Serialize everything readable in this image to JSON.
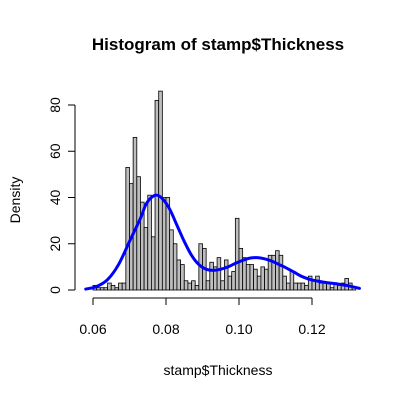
{
  "chart_data": {
    "type": "bar",
    "title": "Histogram of stamp$Thickness",
    "xlabel": "stamp$Thickness",
    "ylabel": "Density",
    "xlim": [
      0.06,
      0.13
    ],
    "ylim": [
      0,
      87
    ],
    "x_ticks": [
      "0.06",
      "0.08",
      "0.10",
      "0.12"
    ],
    "y_ticks": [
      "0",
      "20",
      "40",
      "60",
      "80"
    ],
    "bin_width": 0.001,
    "bins_start": [
      0.06,
      0.061,
      0.062,
      0.063,
      0.064,
      0.065,
      0.066,
      0.067,
      0.068,
      0.069,
      0.07,
      0.071,
      0.072,
      0.073,
      0.074,
      0.075,
      0.076,
      0.077,
      0.078,
      0.079,
      0.08,
      0.081,
      0.082,
      0.083,
      0.084,
      0.085,
      0.086,
      0.087,
      0.088,
      0.089,
      0.09,
      0.091,
      0.092,
      0.093,
      0.094,
      0.095,
      0.096,
      0.097,
      0.098,
      0.099,
      0.1,
      0.101,
      0.102,
      0.103,
      0.104,
      0.105,
      0.106,
      0.107,
      0.108,
      0.109,
      0.11,
      0.111,
      0.112,
      0.113,
      0.114,
      0.115,
      0.116,
      0.117,
      0.118,
      0.119,
      0.12,
      0.121,
      0.122,
      0.123,
      0.124,
      0.125,
      0.126,
      0.127,
      0.128,
      0.129,
      0.13,
      0.131
    ],
    "values": [
      2,
      1,
      1,
      1,
      3,
      2,
      1,
      3,
      3,
      53,
      46,
      66,
      49,
      38,
      27,
      41,
      23,
      82,
      86,
      40,
      40,
      26,
      20,
      13,
      11,
      4,
      3,
      4,
      2,
      20,
      18,
      4,
      12,
      10,
      14,
      4,
      13,
      6,
      8,
      31,
      18,
      14,
      11,
      11,
      9,
      6,
      10,
      9,
      15,
      15,
      17,
      15,
      6,
      3,
      8,
      3,
      3,
      3,
      2,
      6,
      4,
      6,
      3,
      3,
      3,
      1,
      3,
      2,
      3,
      5,
      3,
      1
    ],
    "density_x": [
      0.058,
      0.061,
      0.064,
      0.067,
      0.07,
      0.073,
      0.0745,
      0.076,
      0.0775,
      0.079,
      0.081,
      0.083,
      0.085,
      0.087,
      0.089,
      0.091,
      0.093,
      0.095,
      0.097,
      0.099,
      0.101,
      0.103,
      0.105,
      0.107,
      0.109,
      0.111,
      0.113,
      0.115,
      0.117,
      0.119,
      0.121,
      0.124,
      0.127,
      0.13,
      0.133
    ],
    "density_y": [
      0.4,
      1.5,
      4.5,
      11,
      21,
      31,
      37,
      40,
      41,
      39.5,
      35,
      28,
      21,
      15,
      11,
      9,
      8.5,
      9,
      10,
      11.5,
      12.8,
      13.8,
      14,
      13.5,
      12.5,
      11,
      9.5,
      7.8,
      6,
      4.8,
      4,
      3.2,
      2.6,
      1.8,
      0.7
    ]
  }
}
